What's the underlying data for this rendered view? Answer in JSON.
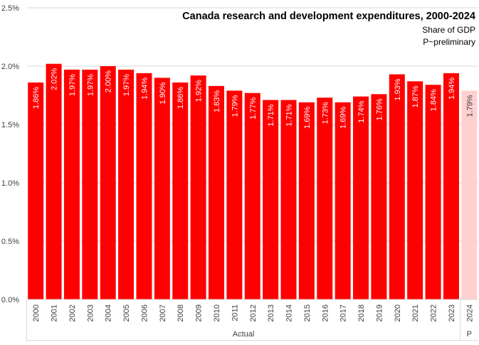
{
  "chart_data": {
    "type": "bar",
    "title": "Canada research and development expenditures,  2000-2024",
    "subtitle_lines": [
      "Share of GDP",
      "P~preliminary"
    ],
    "categories": [
      "2000",
      "2001",
      "2002",
      "2003",
      "2004",
      "2005",
      "2006",
      "2007",
      "2008",
      "2009",
      "2010",
      "2011",
      "2012",
      "2013",
      "2014",
      "2015",
      "2016",
      "2017",
      "2018",
      "2019",
      "2020",
      "2021",
      "2022",
      "2023",
      "2024"
    ],
    "values": [
      1.86,
      2.02,
      1.97,
      1.97,
      2.0,
      1.97,
      1.94,
      1.9,
      1.86,
      1.92,
      1.83,
      1.79,
      1.77,
      1.71,
      1.71,
      1.69,
      1.73,
      1.69,
      1.74,
      1.76,
      1.93,
      1.87,
      1.84,
      1.94,
      1.79
    ],
    "data_labels": [
      "1.86%",
      "2.02%",
      "1.97%",
      "1.97%",
      "2.00%",
      "1.97%",
      "1.94%",
      "1.90%",
      "1.86%",
      "1.92%",
      "1.83%",
      "1.79%",
      "1.77%",
      "1.71%",
      "1.71%",
      "1.69%",
      "1.73%",
      "1.69%",
      "1.74%",
      "1.76%",
      "1.93%",
      "1.87%",
      "1.84%",
      "1.94%",
      "1.79%"
    ],
    "groups": [
      {
        "label": "Actual",
        "count": 24
      },
      {
        "label": "P",
        "count": 1
      }
    ],
    "ylim": [
      0,
      2.5
    ],
    "yticks": [
      0,
      0.5,
      1.0,
      1.5,
      2.0,
      2.5
    ],
    "ytick_labels": [
      "0.0%",
      "0.5%",
      "1.0%",
      "1.5%",
      "2.0%",
      "2.5%"
    ],
    "grid": true,
    "colors": {
      "actual": "#ff0000",
      "preliminary": "#ffd0d0",
      "grid": "#d9d9d9",
      "label_actual": "#ffffff",
      "label_preliminary": "#404040"
    }
  }
}
